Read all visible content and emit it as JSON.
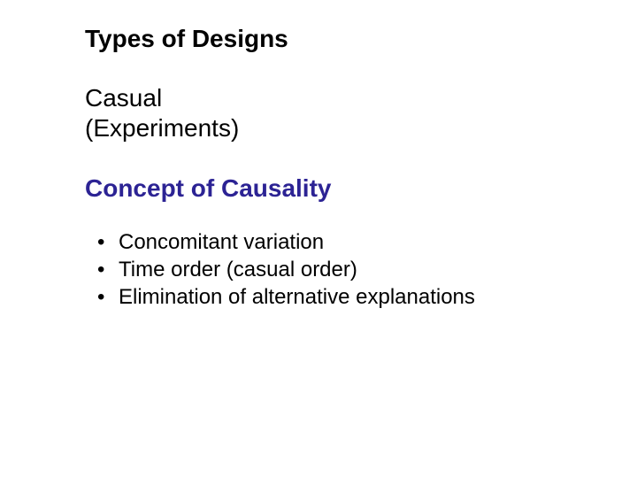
{
  "slide": {
    "title": "Types of Designs",
    "subtitle_line1": "Casual",
    "subtitle_line2": "(Experiments)",
    "section_heading": "Concept of Causality",
    "section_color": "#2c2394",
    "bullets": [
      "Concomitant variation",
      "Time order (casual order)",
      "Elimination of alternative explanations"
    ],
    "background_color": "#ffffff",
    "text_color": "#000000",
    "title_fontsize": 28,
    "body_fontsize": 24,
    "font_family": "Arial"
  }
}
